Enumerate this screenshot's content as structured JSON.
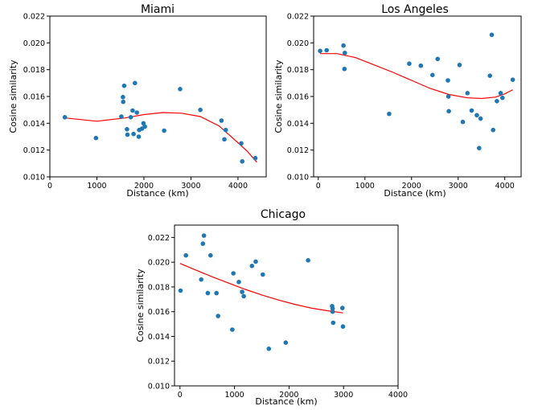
{
  "chart_data": [
    {
      "type": "scatter",
      "title": "Miami",
      "xlabel": "Distance (km)",
      "ylabel": "Cosine similarity",
      "xlim": [
        0,
        4600
      ],
      "ylim": [
        0.01,
        0.022
      ],
      "xticks": [
        0,
        1000,
        2000,
        3000,
        4000
      ],
      "yticks": [
        0.01,
        0.012,
        0.014,
        0.016,
        0.018,
        0.02,
        0.022
      ],
      "xtick_labels": [
        "0",
        "1000",
        "2000",
        "3000",
        "4000"
      ],
      "ytick_labels": [
        "0.010",
        "0.012",
        "0.014",
        "0.016",
        "0.018",
        "0.020",
        "0.022"
      ],
      "grid": false,
      "points": [
        [
          320,
          0.01445
        ],
        [
          980,
          0.0129
        ],
        [
          1520,
          0.0145
        ],
        [
          1555,
          0.01595
        ],
        [
          1560,
          0.0156
        ],
        [
          1580,
          0.0168
        ],
        [
          1640,
          0.01355
        ],
        [
          1650,
          0.01315
        ],
        [
          1720,
          0.01445
        ],
        [
          1760,
          0.01495
        ],
        [
          1780,
          0.0132
        ],
        [
          1810,
          0.017
        ],
        [
          1850,
          0.0148
        ],
        [
          1890,
          0.013
        ],
        [
          1900,
          0.0135
        ],
        [
          1960,
          0.0136
        ],
        [
          1990,
          0.014
        ],
        [
          2020,
          0.01375
        ],
        [
          2430,
          0.01345
        ],
        [
          2770,
          0.01655
        ],
        [
          3200,
          0.015
        ],
        [
          3650,
          0.0142
        ],
        [
          3710,
          0.0128
        ],
        [
          3740,
          0.0135
        ],
        [
          4070,
          0.0125
        ],
        [
          4090,
          0.01115
        ],
        [
          4370,
          0.0114
        ]
      ],
      "fit_line": [
        [
          320,
          0.0144
        ],
        [
          1000,
          0.01415
        ],
        [
          1600,
          0.0144
        ],
        [
          2000,
          0.01465
        ],
        [
          2400,
          0.0148
        ],
        [
          2800,
          0.01475
        ],
        [
          3200,
          0.0145
        ],
        [
          3600,
          0.0138
        ],
        [
          4000,
          0.01255
        ],
        [
          4200,
          0.0119
        ],
        [
          4400,
          0.0111
        ]
      ]
    },
    {
      "type": "scatter",
      "title": "Los Angeles",
      "xlabel": "Distance (km)",
      "ylabel": "Cosine similarity",
      "xlim": [
        -100,
        4350
      ],
      "ylim": [
        0.01,
        0.022
      ],
      "xticks": [
        0,
        1000,
        2000,
        3000,
        4000
      ],
      "yticks": [
        0.01,
        0.012,
        0.014,
        0.016,
        0.018,
        0.02,
        0.022
      ],
      "xtick_labels": [
        "0",
        "1000",
        "2000",
        "3000",
        "4000"
      ],
      "ytick_labels": [
        "0.010",
        "0.012",
        "0.014",
        "0.016",
        "0.018",
        "0.020",
        "0.022"
      ],
      "grid": false,
      "points": [
        [
          40,
          0.0194
        ],
        [
          180,
          0.01945
        ],
        [
          540,
          0.0198
        ],
        [
          570,
          0.01925
        ],
        [
          560,
          0.01805
        ],
        [
          1520,
          0.0147
        ],
        [
          1950,
          0.01845
        ],
        [
          2200,
          0.0183
        ],
        [
          2450,
          0.0176
        ],
        [
          2560,
          0.0188
        ],
        [
          2780,
          0.0172
        ],
        [
          2790,
          0.016
        ],
        [
          2800,
          0.0149
        ],
        [
          3030,
          0.01835
        ],
        [
          3100,
          0.0141
        ],
        [
          3200,
          0.01625
        ],
        [
          3290,
          0.01495
        ],
        [
          3400,
          0.0146
        ],
        [
          3450,
          0.01215
        ],
        [
          3480,
          0.01435
        ],
        [
          3680,
          0.01755
        ],
        [
          3720,
          0.0206
        ],
        [
          3750,
          0.0135
        ],
        [
          3830,
          0.01565
        ],
        [
          3910,
          0.01625
        ],
        [
          3950,
          0.0159
        ],
        [
          4170,
          0.01725
        ]
      ],
      "fit_line": [
        [
          40,
          0.0192
        ],
        [
          400,
          0.0192
        ],
        [
          800,
          0.0189
        ],
        [
          1200,
          0.01835
        ],
        [
          1600,
          0.0178
        ],
        [
          2000,
          0.0172
        ],
        [
          2400,
          0.0166
        ],
        [
          2800,
          0.01615
        ],
        [
          3200,
          0.0159
        ],
        [
          3500,
          0.01585
        ],
        [
          3800,
          0.01595
        ],
        [
          4000,
          0.0162
        ],
        [
          4170,
          0.0165
        ]
      ]
    },
    {
      "type": "scatter",
      "title": "Chicago",
      "xlabel": "Distance (km)",
      "ylabel": "Cosine similarity",
      "xlim": [
        -100,
        4000
      ],
      "ylim": [
        0.01,
        0.023
      ],
      "xticks": [
        0,
        1000,
        2000,
        3000,
        4000
      ],
      "yticks": [
        0.01,
        0.012,
        0.014,
        0.016,
        0.018,
        0.02,
        0.022
      ],
      "xtick_labels": [
        "0",
        "1000",
        "2000",
        "3000",
        "4000"
      ],
      "ytick_labels": [
        "0.010",
        "0.012",
        "0.014",
        "0.016",
        "0.018",
        "0.020",
        "0.022"
      ],
      "grid": false,
      "points": [
        [
          10,
          0.0177
        ],
        [
          110,
          0.02055
        ],
        [
          390,
          0.0186
        ],
        [
          420,
          0.0215
        ],
        [
          440,
          0.02215
        ],
        [
          510,
          0.0175
        ],
        [
          560,
          0.02055
        ],
        [
          670,
          0.0175
        ],
        [
          700,
          0.01565
        ],
        [
          960,
          0.01455
        ],
        [
          980,
          0.0191
        ],
        [
          1080,
          0.0184
        ],
        [
          1140,
          0.0176
        ],
        [
          1170,
          0.01725
        ],
        [
          1320,
          0.0197
        ],
        [
          1390,
          0.02005
        ],
        [
          1520,
          0.019
        ],
        [
          1630,
          0.013
        ],
        [
          1940,
          0.0135
        ],
        [
          2350,
          0.02015
        ],
        [
          2790,
          0.01645
        ],
        [
          2800,
          0.01625
        ],
        [
          2800,
          0.016
        ],
        [
          2810,
          0.0151
        ],
        [
          2980,
          0.0163
        ],
        [
          2990,
          0.0148
        ]
      ],
      "fit_line": [
        [
          0,
          0.0199
        ],
        [
          300,
          0.01935
        ],
        [
          600,
          0.0188
        ],
        [
          900,
          0.0183
        ],
        [
          1200,
          0.0178
        ],
        [
          1500,
          0.01735
        ],
        [
          1800,
          0.01695
        ],
        [
          2100,
          0.0166
        ],
        [
          2400,
          0.0163
        ],
        [
          2700,
          0.01608
        ],
        [
          2990,
          0.0159
        ]
      ]
    }
  ]
}
